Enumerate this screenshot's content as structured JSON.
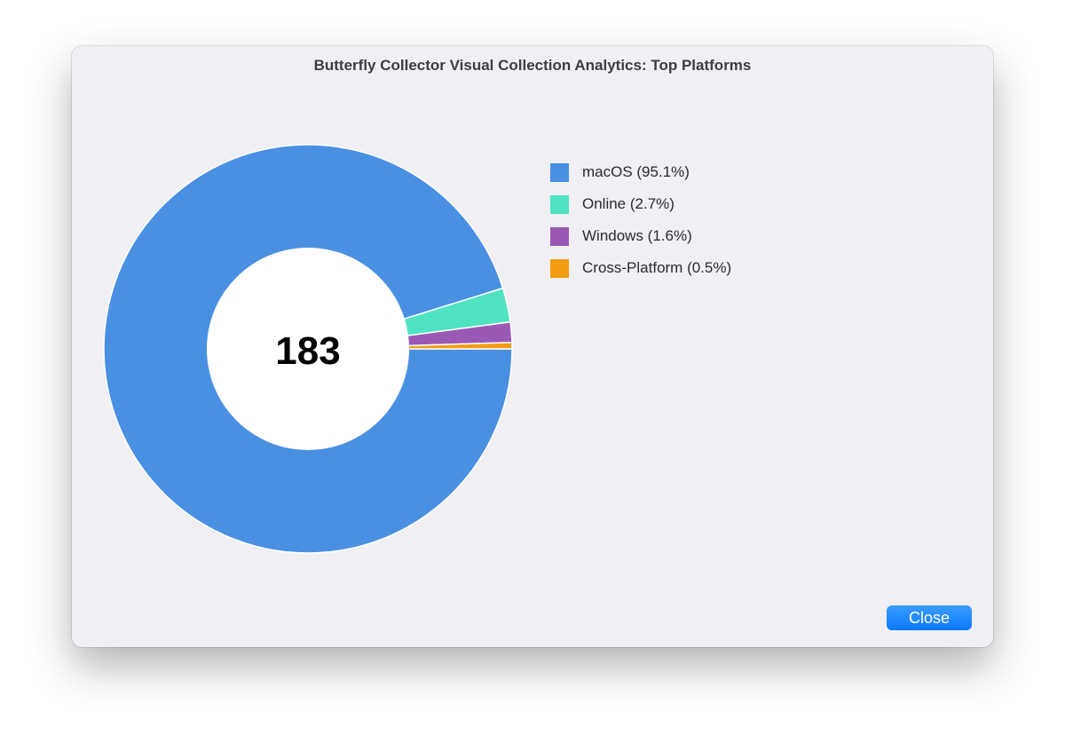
{
  "window": {
    "title": "Butterfly Collector Visual Collection Analytics: Top Platforms"
  },
  "chart_data": {
    "type": "pie",
    "center_total": "183",
    "categories": [
      "macOS",
      "Online",
      "Windows",
      "Cross-Platform"
    ],
    "values": [
      95.1,
      2.7,
      1.6,
      0.5
    ],
    "legend_labels": [
      "macOS (95.1%)",
      "Online (2.7%)",
      "Windows (1.6%)",
      "Cross-Platform (0.5%)"
    ],
    "colors": [
      "#4a90e2",
      "#50e3c2",
      "#9b59b6",
      "#f39c12"
    ],
    "legend_placement": "top-right"
  },
  "footer": {
    "close_label": "Close"
  }
}
